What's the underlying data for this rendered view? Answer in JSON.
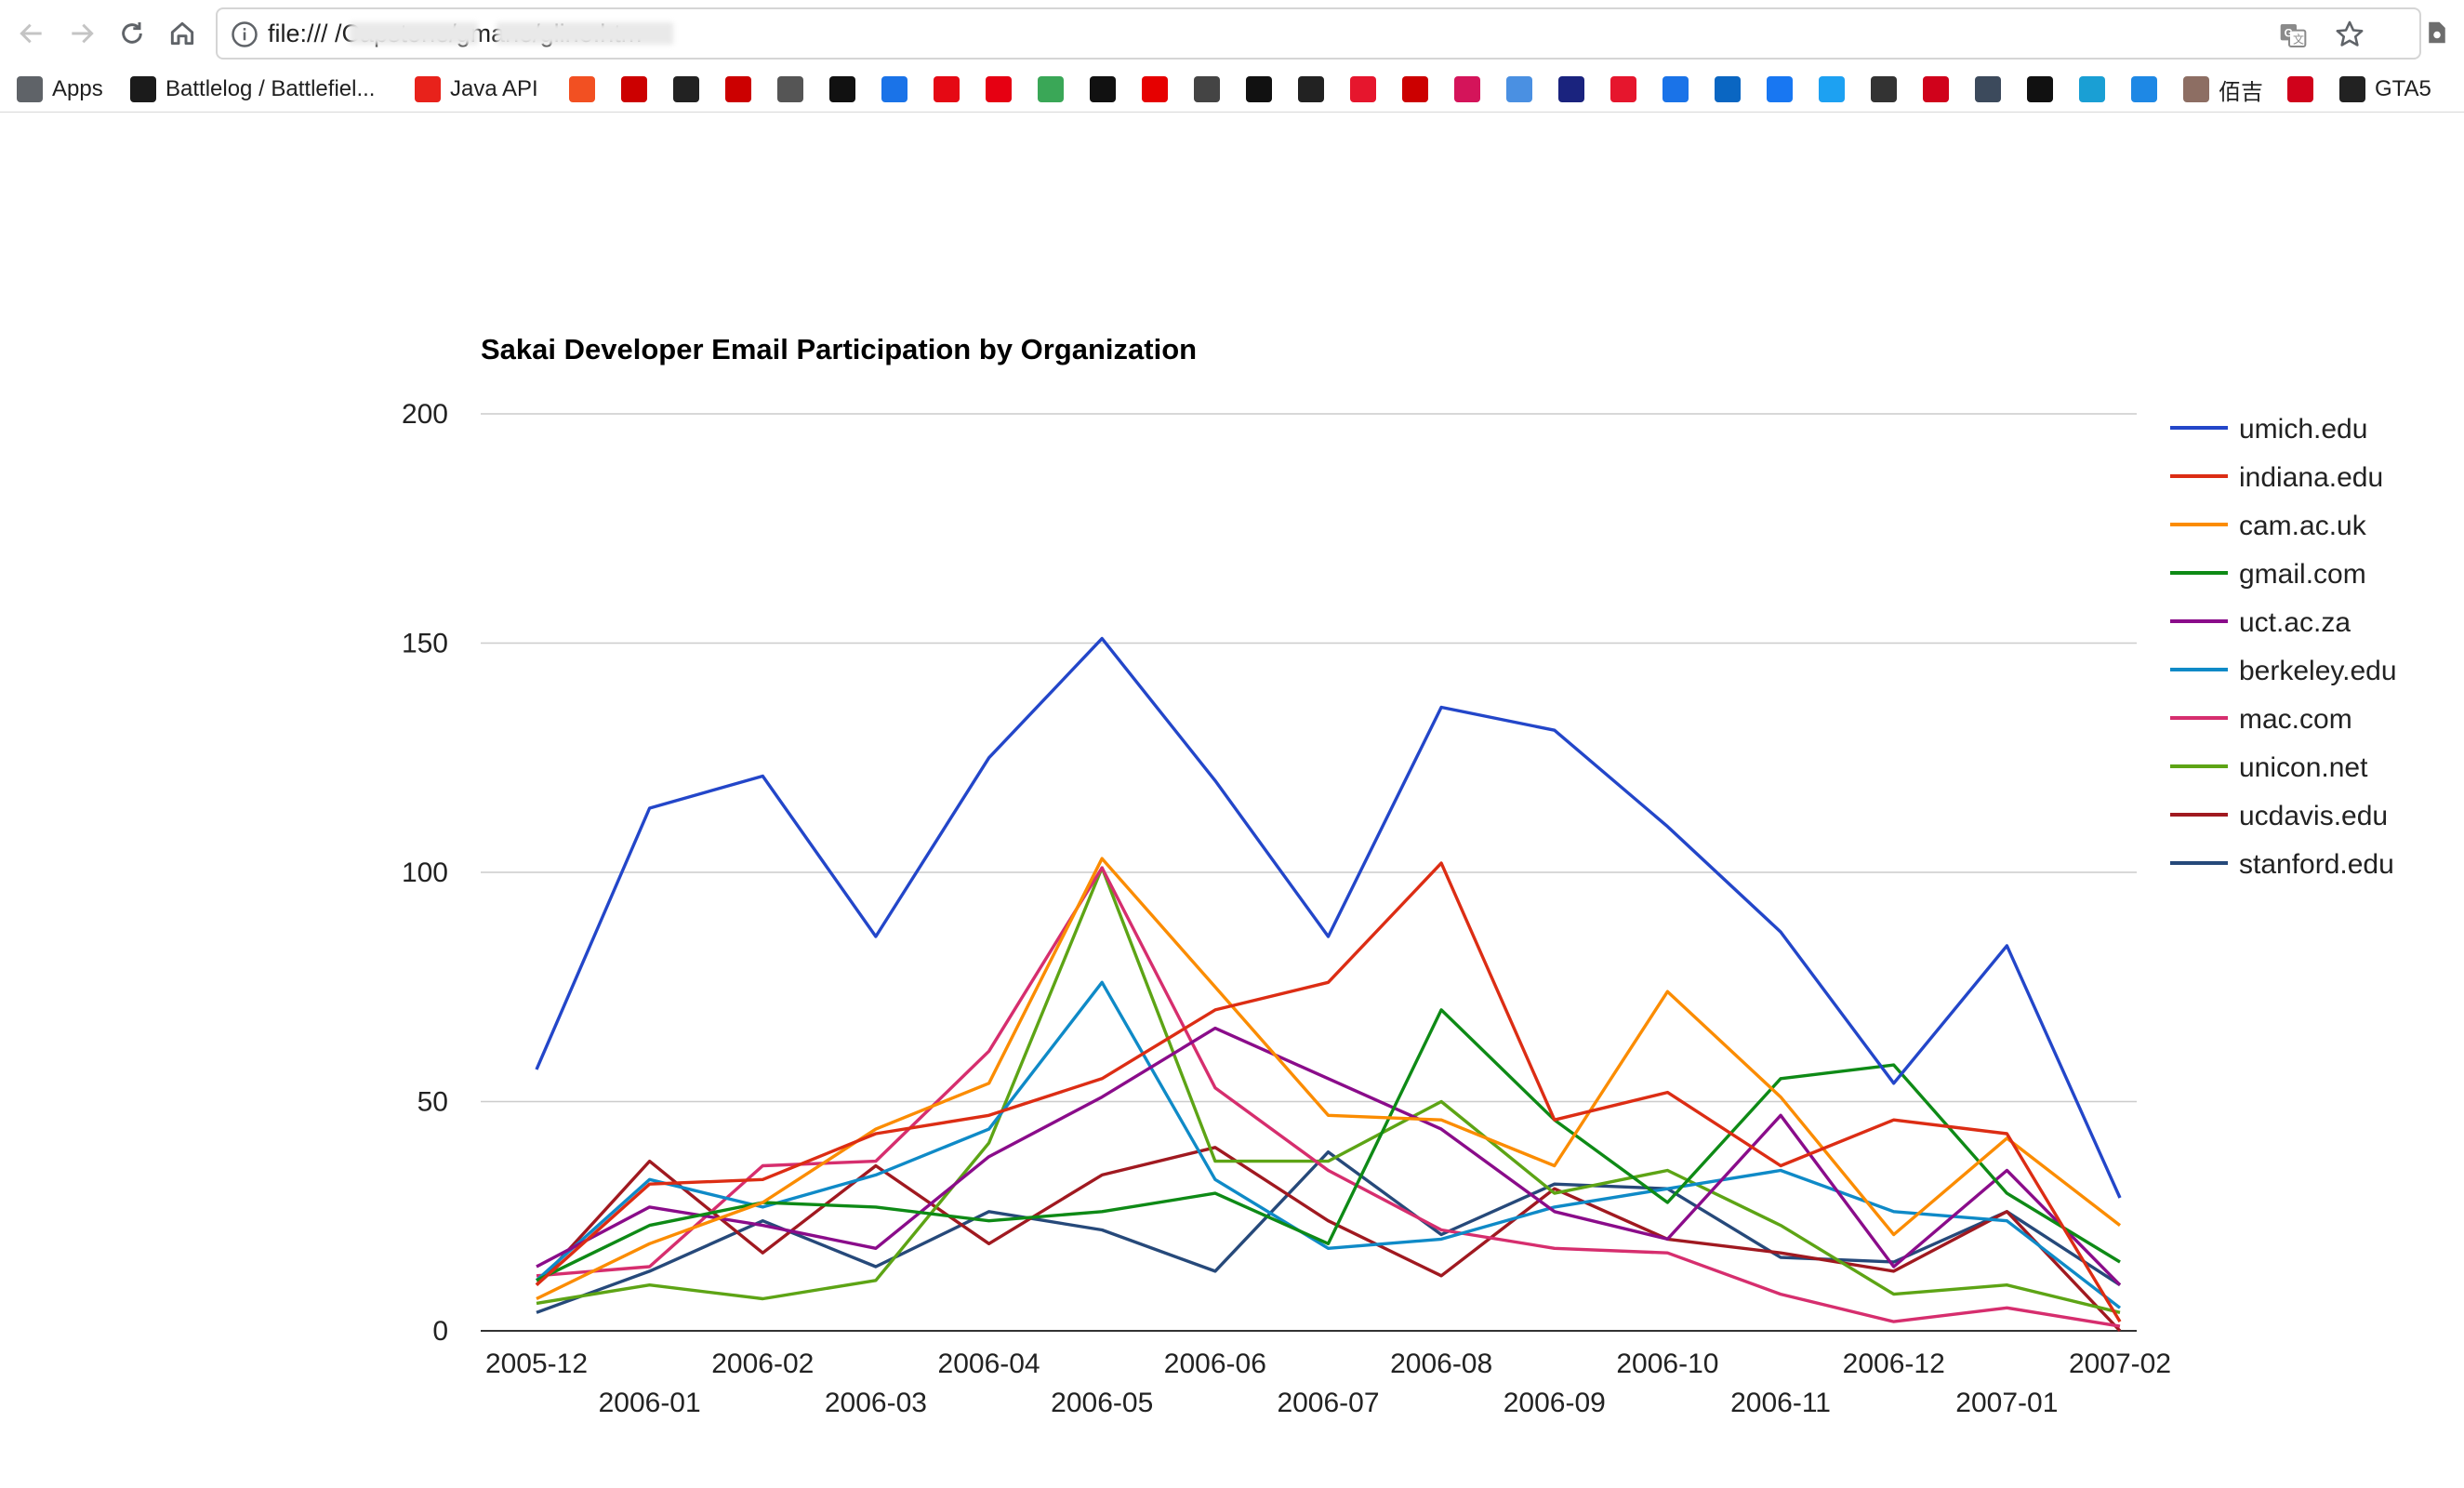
{
  "browser": {
    "url": "file:///            /Capstone/gmane/gline.htm",
    "bookmarks": [
      {
        "label": "Apps",
        "icon": "apps-grid-icon",
        "color": "#5f6368"
      },
      {
        "label": "Battlelog / Battlefiel...",
        "icon": "battlelog-icon",
        "color": "#1b1b1b"
      },
      {
        "label": "Java API",
        "icon": "oracle-icon",
        "color": "#e8221b"
      },
      {
        "label": "",
        "icon": "microsoft-icon",
        "color": "#f25022"
      },
      {
        "label": "",
        "icon": "bu-icon",
        "color": "#cc0000"
      },
      {
        "label": "",
        "icon": "blackboard-icon",
        "color": "#222222"
      },
      {
        "label": "",
        "icon": "bu-icon",
        "color": "#cc0000"
      },
      {
        "label": "",
        "icon": "grid-icon",
        "color": "#555555"
      },
      {
        "label": "",
        "icon": "x-icon",
        "color": "#111111"
      },
      {
        "label": "",
        "icon": "play-icon",
        "color": "#1a73e8"
      },
      {
        "label": "",
        "icon": "netflix-icon",
        "color": "#e50914"
      },
      {
        "label": "",
        "icon": "af-icon",
        "color": "#e60012"
      },
      {
        "label": "",
        "icon": "green-leaf-icon",
        "color": "#3aa757"
      },
      {
        "label": "",
        "icon": "yellow-circle-icon",
        "color": "#111111"
      },
      {
        "label": "",
        "icon": "red-square-icon",
        "color": "#e60000"
      },
      {
        "label": "",
        "icon": "wsj-icon",
        "color": "#444444"
      },
      {
        "label": "",
        "icon": "b-icon",
        "color": "#111111"
      },
      {
        "label": "",
        "icon": "stripes-icon",
        "color": "#222222"
      },
      {
        "label": "",
        "icon": "weibo-icon",
        "color": "#e6162d"
      },
      {
        "label": "",
        "icon": "cnn-icon",
        "color": "#cc0000"
      },
      {
        "label": "",
        "icon": "spiral-icon",
        "color": "#d4145a"
      },
      {
        "label": "",
        "icon": "window-icon",
        "color": "#4a90e2"
      },
      {
        "label": "",
        "icon": "wsj-circle-icon",
        "color": "#1a237e"
      },
      {
        "label": "",
        "icon": "weibo-eye-icon",
        "color": "#e6162d"
      },
      {
        "label": "",
        "icon": "arrow-circle-icon",
        "color": "#1a73e8"
      },
      {
        "label": "",
        "icon": "linkedin-icon",
        "color": "#0a66c2"
      },
      {
        "label": "",
        "icon": "facebook-icon",
        "color": "#1877f2"
      },
      {
        "label": "",
        "icon": "twitter-icon",
        "color": "#1da1f2"
      },
      {
        "label": "",
        "icon": "globe-icon",
        "color": "#333333"
      },
      {
        "label": "",
        "icon": "red-badge-icon",
        "color": "#d0021b"
      },
      {
        "label": "",
        "icon": "h-icon",
        "color": "#3c4a5c"
      },
      {
        "label": "",
        "icon": "star-box-icon",
        "color": "#111111"
      },
      {
        "label": "",
        "icon": "s-icon",
        "color": "#1a9fd4"
      },
      {
        "label": "",
        "icon": "digg-icon",
        "color": "#1e88e5"
      },
      {
        "label": "佰吉",
        "icon": "baiji-icon",
        "color": "#8d6e63"
      },
      {
        "label": "",
        "icon": "bd-icon",
        "color": "#d0021b"
      },
      {
        "label": "GTA5",
        "icon": "gta5-icon",
        "color": "#222222"
      }
    ]
  },
  "chart_data": {
    "type": "line",
    "title": "Sakai Developer Email Participation by Organization",
    "x": [
      "2005-12",
      "2006-01",
      "2006-02",
      "2006-03",
      "2006-04",
      "2006-05",
      "2006-06",
      "2006-07",
      "2006-08",
      "2006-09",
      "2006-10",
      "2006-11",
      "2006-12",
      "2007-01",
      "2007-02"
    ],
    "ylim": [
      0,
      200
    ],
    "yticks": [
      "0",
      "50",
      "100",
      "150",
      "200"
    ],
    "grid": true,
    "legend_position": "right",
    "series": [
      {
        "name": "umich.edu",
        "color": "#2346c9",
        "values": [
          57,
          114,
          121,
          86,
          125,
          151,
          120,
          86,
          136,
          131,
          110,
          87,
          54,
          84,
          29
        ]
      },
      {
        "name": "indiana.edu",
        "color": "#dc2d14",
        "values": [
          10,
          32,
          33,
          43,
          47,
          55,
          70,
          76,
          102,
          46,
          52,
          36,
          46,
          43,
          2
        ]
      },
      {
        "name": "cam.ac.uk",
        "color": "#fb8c00",
        "values": [
          7,
          19,
          28,
          44,
          54,
          103,
          75,
          47,
          46,
          36,
          74,
          51,
          21,
          42,
          23
        ]
      },
      {
        "name": "gmail.com",
        "color": "#0e8a16",
        "values": [
          11,
          23,
          28,
          27,
          24,
          26,
          30,
          19,
          70,
          46,
          28,
          55,
          58,
          30,
          15
        ]
      },
      {
        "name": "uct.ac.za",
        "color": "#8a0c8a",
        "values": [
          14,
          27,
          23,
          18,
          38,
          51,
          66,
          55,
          44,
          26,
          20,
          47,
          14,
          35,
          10
        ]
      },
      {
        "name": "berkeley.edu",
        "color": "#0f8ac7",
        "values": [
          11,
          33,
          27,
          34,
          44,
          76,
          33,
          18,
          20,
          27,
          31,
          35,
          26,
          24,
          5
        ]
      },
      {
        "name": "mac.com",
        "color": "#d62e6e",
        "values": [
          12,
          14,
          36,
          37,
          61,
          101,
          53,
          35,
          22,
          18,
          17,
          8,
          2,
          5,
          1
        ]
      },
      {
        "name": "unicon.net",
        "color": "#5da415",
        "values": [
          6,
          10,
          7,
          11,
          41,
          101,
          37,
          37,
          50,
          30,
          35,
          23,
          8,
          10,
          4
        ]
      },
      {
        "name": "ucdavis.edu",
        "color": "#a01920",
        "values": [
          10,
          37,
          17,
          36,
          19,
          34,
          40,
          24,
          12,
          31,
          20,
          17,
          13,
          26,
          0
        ]
      },
      {
        "name": "stanford.edu",
        "color": "#26497a",
        "values": [
          4,
          13,
          24,
          14,
          26,
          22,
          13,
          39,
          21,
          32,
          31,
          16,
          15,
          26,
          10
        ]
      }
    ]
  }
}
